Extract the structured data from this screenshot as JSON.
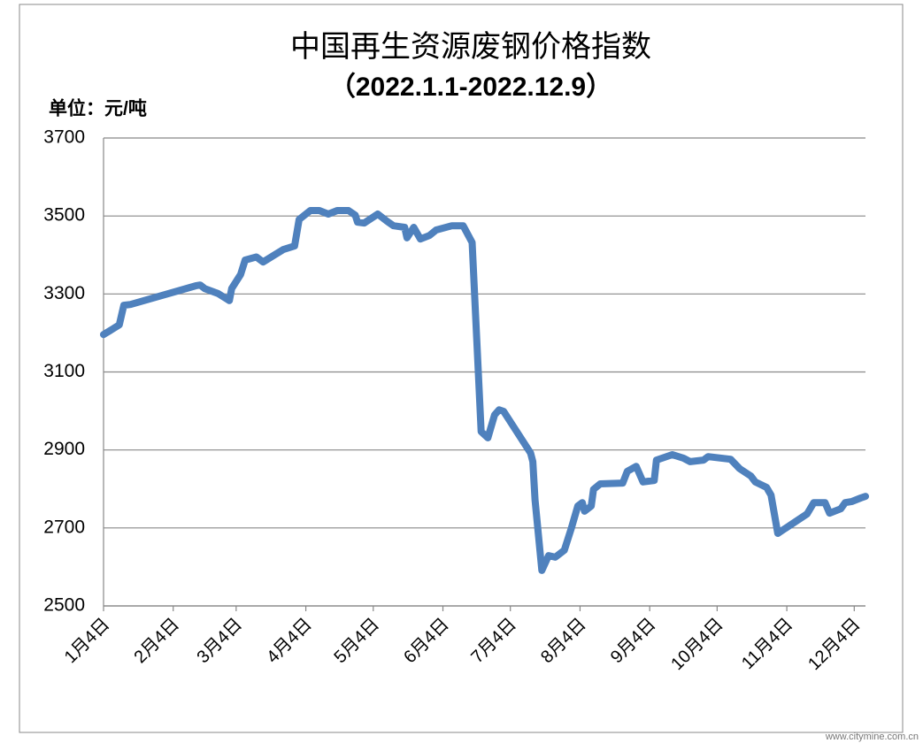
{
  "chart_data": {
    "type": "line",
    "title": "中国再生资源废钢价格指数",
    "subtitle": "（2022.1.1-2022.12.9）",
    "y_axis_label": "单位：元/吨",
    "watermark": "www.citymine.com.cn",
    "ylim": [
      2500,
      3700
    ],
    "yticks": [
      2500,
      2700,
      2900,
      3100,
      3300,
      3500,
      3700
    ],
    "grid": true,
    "xlim": [
      "01-04",
      "12-09"
    ],
    "xticks": [
      {
        "value": "01-04",
        "label": "1月4日"
      },
      {
        "value": "02-04",
        "label": "2月4日"
      },
      {
        "value": "03-04",
        "label": "3月4日"
      },
      {
        "value": "04-04",
        "label": "4月4日"
      },
      {
        "value": "05-04",
        "label": "5月4日"
      },
      {
        "value": "06-04",
        "label": "6月4日"
      },
      {
        "value": "07-04",
        "label": "7月4日"
      },
      {
        "value": "08-04",
        "label": "8月4日"
      },
      {
        "value": "09-04",
        "label": "9月4日"
      },
      {
        "value": "10-04",
        "label": "10月4日"
      },
      {
        "value": "11-04",
        "label": "11月4日"
      },
      {
        "value": "12-04",
        "label": "12月4日"
      }
    ],
    "x": [
      "01-04",
      "01-08",
      "01-11",
      "01-13",
      "01-16",
      "02-14",
      "02-16",
      "02-18",
      "02-24",
      "03-01",
      "03-02",
      "03-06",
      "03-08",
      "03-13",
      "03-16",
      "03-21",
      "03-25",
      "03-30",
      "04-01",
      "04-06",
      "04-10",
      "04-14",
      "04-18",
      "04-23",
      "04-26",
      "04-27",
      "04-30",
      "05-06",
      "05-10",
      "05-13",
      "05-18",
      "05-19",
      "05-22",
      "05-25",
      "05-29",
      "06-01",
      "06-08",
      "06-13",
      "06-17",
      "06-21",
      "06-24",
      "06-27",
      "06-29",
      "07-01",
      "07-13",
      "07-14",
      "07-15",
      "07-18",
      "07-21",
      "07-24",
      "07-28",
      "07-31",
      "08-03",
      "08-05",
      "08-06",
      "08-09",
      "08-10",
      "08-13",
      "08-23",
      "08-25",
      "08-29",
      "09-01",
      "09-06",
      "09-07",
      "09-14",
      "09-19",
      "09-22",
      "09-28",
      "09-30",
      "10-10",
      "10-14",
      "10-19",
      "10-21",
      "10-26",
      "10-28",
      "10-31",
      "11-13",
      "11-16",
      "11-21",
      "11-23",
      "11-28",
      "11-30",
      "12-03",
      "12-07",
      "12-09"
    ],
    "series": [
      {
        "color": "#4f81bd",
        "values": [
          3196,
          3210,
          3221,
          3271,
          3273,
          3321,
          3323,
          3314,
          3301,
          3283,
          3314,
          3350,
          3387,
          3395,
          3382,
          3400,
          3414,
          3423,
          3491,
          3514,
          3514,
          3505,
          3514,
          3514,
          3502,
          3484,
          3482,
          3505,
          3487,
          3475,
          3471,
          3444,
          3471,
          3441,
          3450,
          3464,
          3475,
          3475,
          3432,
          2947,
          2931,
          2990,
          3003,
          2999,
          2892,
          2870,
          2772,
          2591,
          2629,
          2625,
          2643,
          2697,
          2756,
          2765,
          2743,
          2756,
          2799,
          2813,
          2815,
          2845,
          2858,
          2818,
          2822,
          2874,
          2888,
          2879,
          2870,
          2874,
          2883,
          2876,
          2852,
          2833,
          2818,
          2804,
          2784,
          2686,
          2736,
          2765,
          2765,
          2738,
          2749,
          2765,
          2768,
          2777,
          2781
        ]
      }
    ]
  }
}
